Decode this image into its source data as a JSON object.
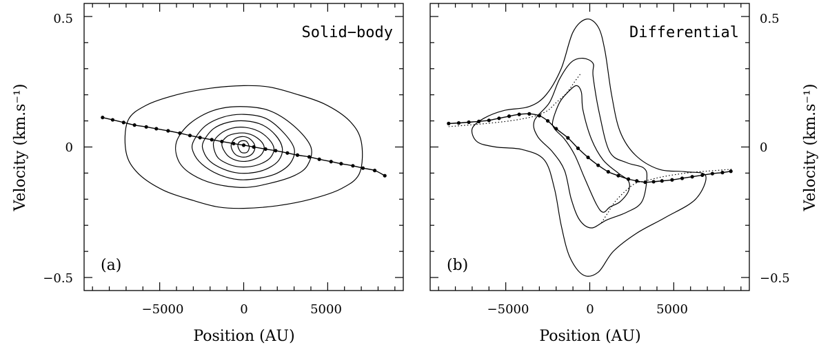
{
  "chart_data": [
    {
      "type": "scatter",
      "panel_label": "(a)",
      "title": "Solid−body",
      "xlabel": "Position (AU)",
      "ylabel": "Velocity (km.s⁻¹)",
      "xlim": [
        -9500,
        9500
      ],
      "ylim": [
        -0.55,
        0.55
      ],
      "xticks": [
        -5000,
        0,
        5000
      ],
      "yticks": [
        -0.5,
        0,
        0.5
      ],
      "ytick_labels": [
        "−0.5",
        "0",
        "0.5"
      ],
      "xtick_labels": [
        "−5000",
        "0",
        "5000"
      ],
      "contours": [
        {
          "level": 1,
          "points": [
            [
              -6900,
              0.1
            ],
            [
              -5800,
              0.16
            ],
            [
              -4000,
              0.2
            ],
            [
              -2000,
              0.225
            ],
            [
              0,
              0.235
            ],
            [
              1500,
              0.23
            ],
            [
              3000,
              0.205
            ],
            [
              4800,
              0.165
            ],
            [
              6300,
              0.1
            ],
            [
              7000,
              0.02
            ],
            [
              6900,
              -0.1
            ],
            [
              5800,
              -0.16
            ],
            [
              4000,
              -0.2
            ],
            [
              2000,
              -0.225
            ],
            [
              0,
              -0.235
            ],
            [
              -1500,
              -0.23
            ],
            [
              -3000,
              -0.205
            ],
            [
              -4800,
              -0.165
            ],
            [
              -6300,
              -0.1
            ],
            [
              -7000,
              -0.02
            ]
          ]
        },
        {
          "level": 2,
          "points": [
            [
              -4000,
              0.02
            ],
            [
              -3200,
              0.09
            ],
            [
              -1800,
              0.14
            ],
            [
              -200,
              0.155
            ],
            [
              1500,
              0.14
            ],
            [
              3000,
              0.08
            ],
            [
              4000,
              0.0
            ],
            [
              3800,
              -0.07
            ],
            [
              3000,
              -0.11
            ],
            [
              1500,
              -0.14
            ],
            [
              0,
              -0.155
            ],
            [
              -1800,
              -0.14
            ],
            [
              -3200,
              -0.1
            ],
            [
              -3900,
              -0.05
            ]
          ]
        },
        {
          "level": 3,
          "points": [
            [
              -3000,
              0.02
            ],
            [
              -2300,
              0.08
            ],
            [
              -1200,
              0.115
            ],
            [
              0,
              0.125
            ],
            [
              1300,
              0.11
            ],
            [
              2300,
              0.06
            ],
            [
              3000,
              -0.005
            ],
            [
              2800,
              -0.06
            ],
            [
              2000,
              -0.1
            ],
            [
              900,
              -0.12
            ],
            [
              -300,
              -0.125
            ],
            [
              -1500,
              -0.105
            ],
            [
              -2500,
              -0.065
            ],
            [
              -3000,
              -0.02
            ]
          ]
        },
        {
          "level": 4,
          "points": [
            [
              -2400,
              0.02
            ],
            [
              -1800,
              0.07
            ],
            [
              -900,
              0.095
            ],
            [
              100,
              0.1
            ],
            [
              1100,
              0.085
            ],
            [
              1900,
              0.045
            ],
            [
              2300,
              -0.005
            ],
            [
              2100,
              -0.05
            ],
            [
              1500,
              -0.08
            ],
            [
              700,
              -0.097
            ],
            [
              -300,
              -0.1
            ],
            [
              -1200,
              -0.085
            ],
            [
              -2000,
              -0.055
            ],
            [
              -2400,
              -0.015
            ]
          ]
        },
        {
          "level": 5,
          "points": [
            [
              -1800,
              0.015
            ],
            [
              -1400,
              0.05
            ],
            [
              -700,
              0.072
            ],
            [
              100,
              0.075
            ],
            [
              900,
              0.06
            ],
            [
              1500,
              0.03
            ],
            [
              1800,
              -0.005
            ],
            [
              1600,
              -0.04
            ],
            [
              1100,
              -0.062
            ],
            [
              400,
              -0.075
            ],
            [
              -400,
              -0.075
            ],
            [
              -1100,
              -0.06
            ],
            [
              -1600,
              -0.035
            ]
          ]
        },
        {
          "level": 6,
          "points": [
            [
              -1300,
              0.01
            ],
            [
              -1000,
              0.04
            ],
            [
              -450,
              0.052
            ],
            [
              200,
              0.052
            ],
            [
              800,
              0.035
            ],
            [
              1200,
              0.005
            ],
            [
              1100,
              -0.025
            ],
            [
              700,
              -0.045
            ],
            [
              100,
              -0.055
            ],
            [
              -500,
              -0.05
            ],
            [
              -1000,
              -0.03
            ]
          ]
        },
        {
          "level": 7,
          "points": [
            [
              -750,
              0.005
            ],
            [
              -550,
              0.03
            ],
            [
              -100,
              0.04
            ],
            [
              350,
              0.032
            ],
            [
              650,
              0.008
            ],
            [
              600,
              -0.018
            ],
            [
              300,
              -0.035
            ],
            [
              -150,
              -0.038
            ],
            [
              -550,
              -0.025
            ]
          ]
        },
        {
          "level": 8,
          "points": [
            [
              -350,
              0.005
            ],
            [
              -200,
              0.022
            ],
            [
              150,
              0.022
            ],
            [
              330,
              0.0
            ],
            [
              200,
              -0.02
            ],
            [
              -150,
              -0.02
            ]
          ]
        }
      ],
      "curve_points": [
        [
          -8400,
          0.113
        ],
        [
          -7800,
          0.104
        ],
        [
          -7150,
          0.094
        ],
        [
          -6500,
          0.084
        ],
        [
          -5800,
          0.077
        ],
        [
          -5200,
          0.07
        ],
        [
          -4500,
          0.062
        ],
        [
          -3800,
          0.053
        ],
        [
          -3200,
          0.044
        ],
        [
          -2600,
          0.036
        ],
        [
          -1900,
          0.028
        ],
        [
          -1300,
          0.021
        ],
        [
          -600,
          0.013
        ],
        [
          0,
          0.007
        ],
        [
          600,
          0.0
        ],
        [
          1300,
          -0.008
        ],
        [
          1900,
          -0.014
        ],
        [
          2600,
          -0.023
        ],
        [
          3200,
          -0.031
        ],
        [
          3900,
          -0.038
        ],
        [
          4500,
          -0.047
        ],
        [
          5200,
          -0.056
        ],
        [
          5800,
          -0.064
        ],
        [
          6500,
          -0.072
        ],
        [
          7100,
          -0.081
        ],
        [
          7800,
          -0.09
        ],
        [
          8400,
          -0.11
        ]
      ],
      "dotted_points": []
    },
    {
      "type": "scatter",
      "panel_label": "(b)",
      "title": "Differential",
      "xlabel": "Position (AU)",
      "ylabel": "Velocity (km.s⁻¹)",
      "xlim": [
        -9500,
        9500
      ],
      "ylim": [
        -0.55,
        0.55
      ],
      "xticks": [
        -5000,
        0,
        5000
      ],
      "yticks": [
        -0.5,
        0,
        0.5
      ],
      "ytick_labels": [
        "−0.5",
        "0",
        "0.5"
      ],
      "xtick_labels": [
        "−5000",
        "0",
        "5000"
      ],
      "contours": [
        {
          "level": 1,
          "points": [
            [
              -7000,
              0.07
            ],
            [
              -6300,
              0.11
            ],
            [
              -5100,
              0.14
            ],
            [
              -3600,
              0.155
            ],
            [
              -2600,
              0.2
            ],
            [
              -1700,
              0.3
            ],
            [
              -1000,
              0.44
            ],
            [
              -200,
              0.49
            ],
            [
              500,
              0.46
            ],
            [
              900,
              0.37
            ],
            [
              1300,
              0.2
            ],
            [
              1800,
              0.06
            ],
            [
              2700,
              -0.03
            ],
            [
              4100,
              -0.085
            ],
            [
              5700,
              -0.095
            ],
            [
              6900,
              -0.11
            ],
            [
              6300,
              -0.2
            ],
            [
              4500,
              -0.27
            ],
            [
              2800,
              -0.33
            ],
            [
              1400,
              -0.4
            ],
            [
              500,
              -0.48
            ],
            [
              -400,
              -0.49
            ],
            [
              -1200,
              -0.42
            ],
            [
              -1700,
              -0.3
            ],
            [
              -2100,
              -0.16
            ],
            [
              -2700,
              -0.05
            ],
            [
              -4000,
              -0.01
            ],
            [
              -5600,
              0.0
            ],
            [
              -6700,
              0.02
            ]
          ]
        },
        {
          "level": 2,
          "points": [
            [
              -3300,
              0.1
            ],
            [
              -2400,
              0.17
            ],
            [
              -1800,
              0.26
            ],
            [
              -1100,
              0.325
            ],
            [
              -400,
              0.34
            ],
            [
              200,
              0.32
            ],
            [
              200,
              0.27
            ],
            [
              600,
              0.12
            ],
            [
              1200,
              -0.02
            ],
            [
              2200,
              -0.06
            ],
            [
              3200,
              -0.08
            ],
            [
              3400,
              -0.12
            ],
            [
              3100,
              -0.21
            ],
            [
              2200,
              -0.25
            ],
            [
              1000,
              -0.28
            ],
            [
              100,
              -0.31
            ],
            [
              -600,
              -0.28
            ],
            [
              -1100,
              -0.2
            ],
            [
              -1500,
              -0.09
            ],
            [
              -2200,
              -0.02
            ],
            [
              -3100,
              0.04
            ]
          ]
        },
        {
          "level": 3,
          "points": [
            [
              -2200,
              0.1
            ],
            [
              -1800,
              0.17
            ],
            [
              -1300,
              0.21
            ],
            [
              -800,
              0.235
            ],
            [
              -500,
              0.21
            ],
            [
              -400,
              0.14
            ],
            [
              100,
              0.03
            ],
            [
              800,
              -0.05
            ],
            [
              1700,
              -0.1
            ],
            [
              2300,
              -0.13
            ],
            [
              2300,
              -0.17
            ],
            [
              1800,
              -0.21
            ],
            [
              1200,
              -0.23
            ],
            [
              800,
              -0.25
            ],
            [
              400,
              -0.22
            ],
            [
              -300,
              -0.12
            ],
            [
              -900,
              -0.03
            ],
            [
              -1500,
              0.03
            ],
            [
              -2100,
              0.07
            ]
          ]
        }
      ],
      "curve_points": [
        [
          -8400,
          0.09
        ],
        [
          -7800,
          0.092
        ],
        [
          -7200,
          0.095
        ],
        [
          -6600,
          0.098
        ],
        [
          -6000,
          0.102
        ],
        [
          -5400,
          0.11
        ],
        [
          -4800,
          0.118
        ],
        [
          -4200,
          0.125
        ],
        [
          -3600,
          0.127
        ],
        [
          -3000,
          0.12
        ],
        [
          -2500,
          0.1
        ],
        [
          -2000,
          0.07
        ],
        [
          -1300,
          0.035
        ],
        [
          -700,
          -0.005
        ],
        [
          -100,
          -0.04
        ],
        [
          500,
          -0.07
        ],
        [
          1100,
          -0.095
        ],
        [
          1700,
          -0.11
        ],
        [
          2300,
          -0.123
        ],
        [
          2800,
          -0.13
        ],
        [
          3300,
          -0.135
        ],
        [
          3800,
          -0.133
        ],
        [
          4300,
          -0.13
        ],
        [
          4900,
          -0.126
        ],
        [
          5500,
          -0.12
        ],
        [
          6100,
          -0.114
        ],
        [
          6700,
          -0.108
        ],
        [
          7300,
          -0.102
        ],
        [
          7900,
          -0.098
        ],
        [
          8400,
          -0.093
        ]
      ],
      "dotted_points": [
        [
          [
            -8400,
            0.078
          ],
          [
            -6500,
            0.088
          ],
          [
            -5000,
            0.098
          ],
          [
            -4000,
            0.108
          ],
          [
            -3200,
            0.12
          ],
          [
            -2500,
            0.14
          ],
          [
            -2000,
            0.17
          ],
          [
            -1400,
            0.205
          ],
          [
            -900,
            0.25
          ],
          [
            -500,
            0.285
          ]
        ],
        [
          [
            700,
            -0.29
          ],
          [
            1100,
            -0.25
          ],
          [
            1500,
            -0.21
          ],
          [
            2100,
            -0.17
          ],
          [
            2700,
            -0.14
          ],
          [
            3300,
            -0.13
          ],
          [
            4500,
            -0.112
          ],
          [
            6000,
            -0.098
          ],
          [
            7500,
            -0.09
          ],
          [
            8500,
            -0.085
          ]
        ]
      ]
    }
  ]
}
